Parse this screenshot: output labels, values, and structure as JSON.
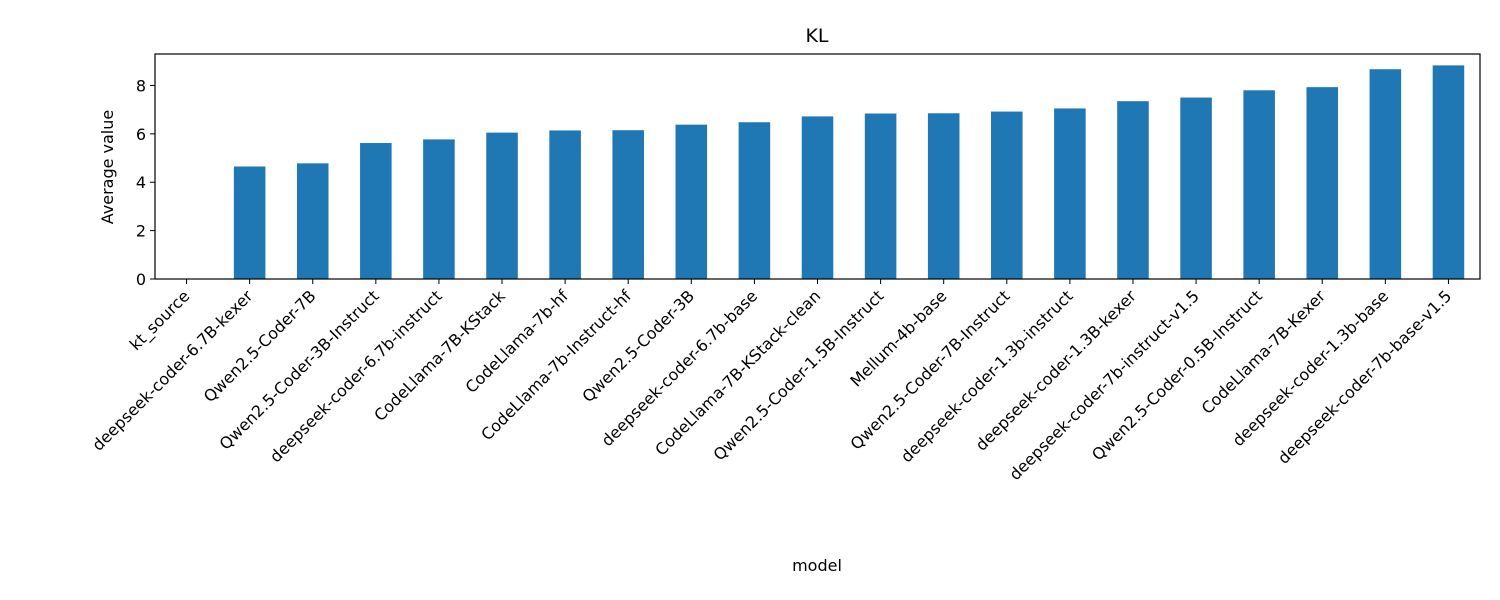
{
  "chart_data": {
    "type": "bar",
    "title": "KL",
    "xlabel": "model",
    "ylabel": "Average value",
    "ylim": [
      0,
      9.3
    ],
    "yticks": [
      0,
      2,
      4,
      6,
      8
    ],
    "grid": false,
    "bar_color": "#1f77b4",
    "categories": [
      "kt_source",
      "deepseek-coder-6.7B-kexer",
      "Qwen2.5-Coder-7B",
      "Qwen2.5-Coder-3B-Instruct",
      "deepseek-coder-6.7b-instruct",
      "CodeLlama-7B-KStack",
      "CodeLlama-7b-hf",
      "CodeLlama-7b-Instruct-hf",
      "Qwen2.5-Coder-3B",
      "deepseek-coder-6.7b-base",
      "CodeLlama-7B-KStack-clean",
      "Qwen2.5-Coder-1.5B-Instruct",
      "Mellum-4b-base",
      "Qwen2.5-Coder-7B-Instruct",
      "deepseek-coder-1.3b-instruct",
      "deepseek-coder-1.3B-kexer",
      "deepseek-coder-7b-instruct-v1.5",
      "Qwen2.5-Coder-0.5B-Instruct",
      "CodeLlama-7B-Kexer",
      "deepseek-coder-1.3b-base",
      "deepseek-coder-7b-base-v1.5"
    ],
    "values": [
      0.0,
      4.65,
      4.78,
      5.62,
      5.77,
      6.05,
      6.14,
      6.15,
      6.38,
      6.48,
      6.72,
      6.84,
      6.85,
      6.92,
      7.05,
      7.35,
      7.5,
      7.8,
      7.93,
      8.67,
      8.83
    ]
  }
}
